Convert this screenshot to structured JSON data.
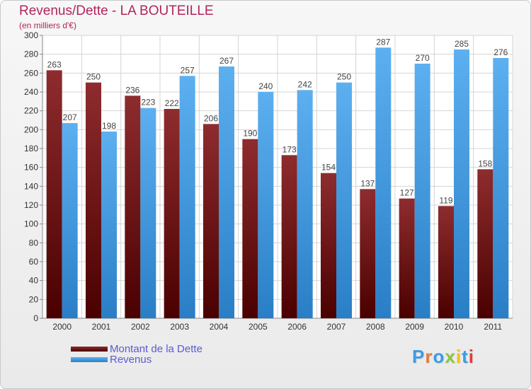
{
  "chart_data": {
    "type": "bar",
    "title": "Revenus/Dette - LA BOUTEILLE",
    "subtitle": "(en milliers d'€)",
    "categories": [
      "2000",
      "2001",
      "2002",
      "2003",
      "2004",
      "2005",
      "2006",
      "2007",
      "2008",
      "2009",
      "2010",
      "2011"
    ],
    "series": [
      {
        "name": "Montant de la Dette",
        "color": "#7a1e20",
        "values": [
          263,
          250,
          236,
          222,
          206,
          190,
          173,
          154,
          137,
          127,
          119,
          158
        ]
      },
      {
        "name": "Revenus",
        "color": "#3e9be3",
        "values": [
          207,
          198,
          223,
          257,
          267,
          240,
          242,
          250,
          287,
          270,
          285,
          276
        ]
      }
    ],
    "ylim": [
      0,
      300
    ],
    "ytick_step": 20,
    "grid": true,
    "legend_position": "bottom-left"
  },
  "logo": {
    "text": "Proxiti"
  }
}
